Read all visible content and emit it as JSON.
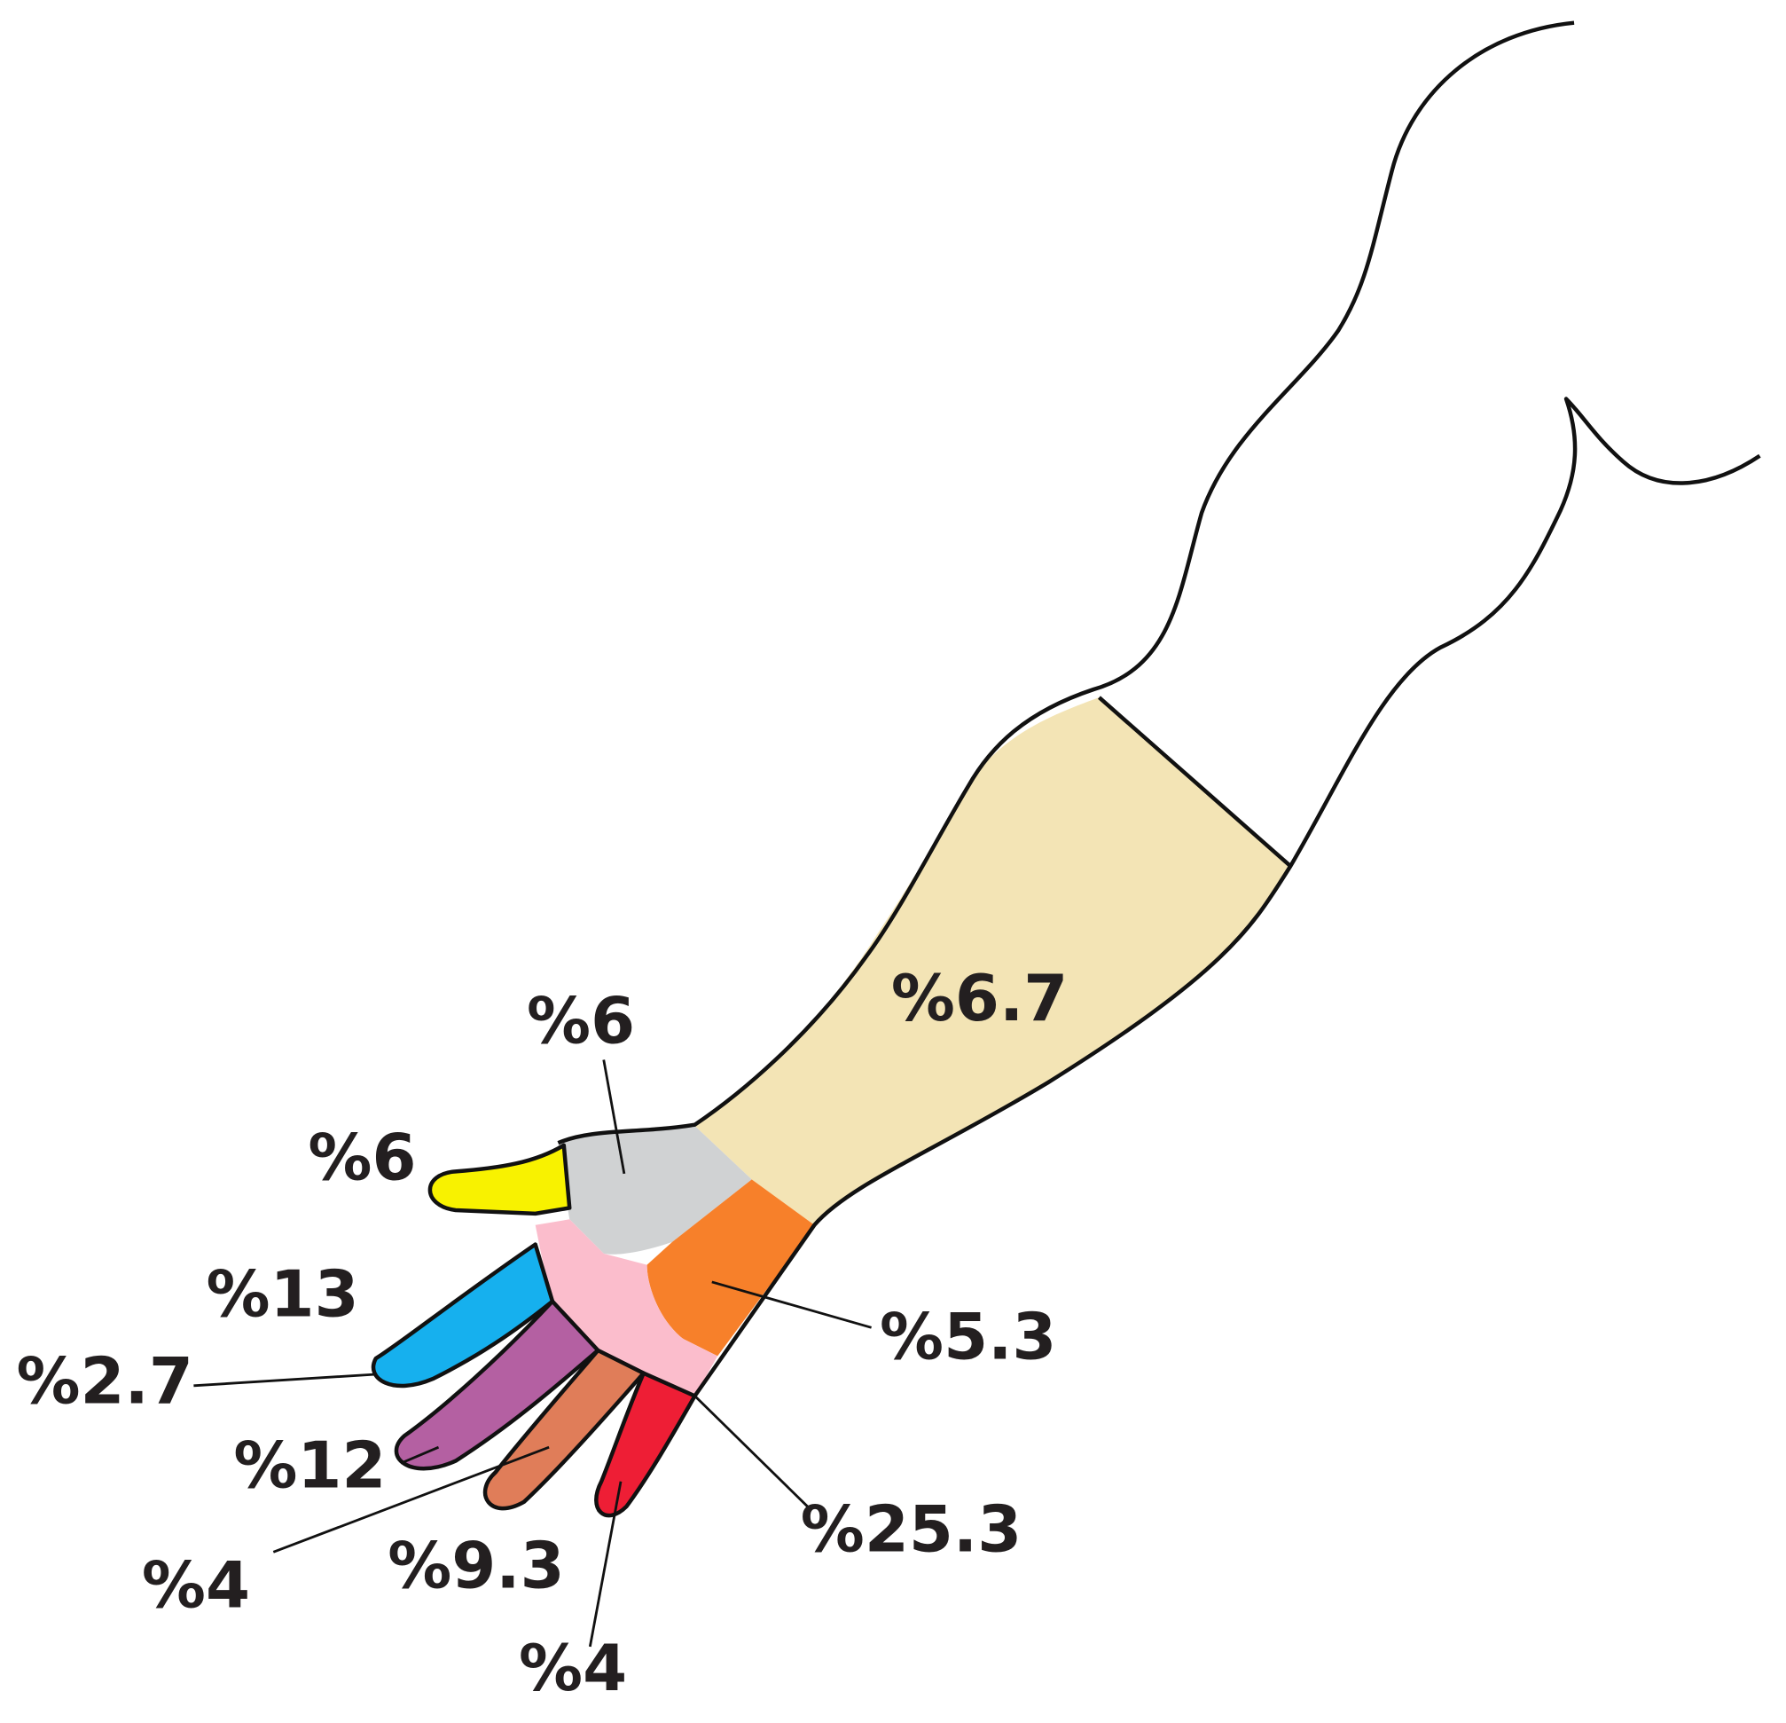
{
  "regions": [
    {
      "label": "%6.7"
    },
    {
      "label": "%6"
    },
    {
      "label": "%6"
    },
    {
      "label": "%13"
    },
    {
      "label": "%2.7"
    },
    {
      "label": "%5.3"
    },
    {
      "label": "%12"
    },
    {
      "label": "%4"
    },
    {
      "label": "%9.3"
    },
    {
      "label": "%25.3"
    },
    {
      "label": "%4"
    }
  ]
}
